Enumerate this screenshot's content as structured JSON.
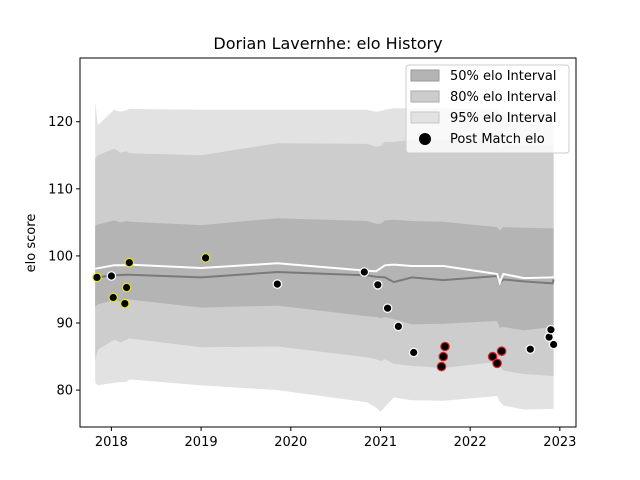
{
  "chart_data": {
    "type": "line",
    "title": "Dorian Lavernhe: elo History",
    "xlabel": "",
    "ylabel": "elo score",
    "xlim": [
      2017.65,
      2023.18
    ],
    "ylim": [
      74.5,
      129.5
    ],
    "x_ticks": [
      2018,
      2019,
      2020,
      2021,
      2022,
      2023
    ],
    "y_ticks": [
      80,
      90,
      100,
      110,
      120
    ],
    "grid": false,
    "legend_position": "top-right",
    "legend": [
      "50% elo Interval",
      "80% elo Interval",
      "95% elo Interval",
      "Post Match elo"
    ],
    "colors": {
      "band95": "#e2e2e2",
      "band80": "#cdcdcd",
      "band50": "#b4b4b4",
      "median": "#7a7a7a",
      "mean": "#ffffff",
      "point_fill": "#000000",
      "edge_default": "#ffffff",
      "edge_yellow": "#e6e61a",
      "edge_red": "#e02020"
    },
    "bands": {
      "x": [
        2017.82,
        2017.85,
        2018.03,
        2018.1,
        2018.17,
        2018.2,
        2019.0,
        2019.85,
        2020.85,
        2020.95,
        2021.0,
        2021.05,
        2021.15,
        2021.35,
        2021.7,
        2022.3,
        2022.33,
        2022.37,
        2022.6,
        2022.92,
        2022.93
      ],
      "hi95": [
        123.0,
        119.5,
        121.8,
        121.5,
        121.7,
        121.9,
        121.8,
        121.8,
        121.8,
        121.5,
        121.6,
        121.8,
        122.0,
        122.0,
        122.0,
        121.8,
        120.5,
        121.4,
        121.2,
        121.2,
        121.2
      ],
      "hi80": [
        114.5,
        115.0,
        116.0,
        115.4,
        115.6,
        115.3,
        115.0,
        116.8,
        116.7,
        116.3,
        116.4,
        117.0,
        117.0,
        117.3,
        117.3,
        117.1,
        115.7,
        116.5,
        116.6,
        116.5,
        116.5
      ],
      "hi50": [
        104.5,
        104.7,
        105.3,
        105.0,
        105.2,
        105.1,
        104.6,
        105.6,
        105.2,
        104.8,
        104.8,
        105.3,
        105.4,
        105.2,
        105.1,
        104.3,
        103.8,
        104.3,
        104.2,
        104.1,
        104.1
      ],
      "lo50": [
        92.4,
        92.8,
        93.4,
        93.2,
        93.6,
        93.5,
        92.3,
        92.6,
        91.0,
        90.9,
        90.7,
        90.9,
        90.6,
        89.8,
        89.9,
        90.3,
        89.3,
        89.4,
        88.9,
        89.4,
        89.4
      ],
      "lo80": [
        84.4,
        86.0,
        87.5,
        87.1,
        87.5,
        87.7,
        86.4,
        86.5,
        84.9,
        84.6,
        84.3,
        84.6,
        83.9,
        83.6,
        83.3,
        84.2,
        83.6,
        82.9,
        82.4,
        82.1,
        82.1
      ],
      "lo95": [
        81.1,
        80.7,
        81.1,
        81.2,
        81.2,
        81.6,
        80.7,
        80.0,
        78.2,
        77.4,
        76.8,
        77.5,
        78.9,
        78.5,
        78.4,
        79.1,
        78.3,
        77.7,
        77.1,
        77.2,
        77.2
      ]
    },
    "mean_line": {
      "x": [
        2017.82,
        2018.03,
        2018.17,
        2018.2,
        2019.0,
        2019.85,
        2020.85,
        2020.95,
        2021.05,
        2021.15,
        2021.35,
        2021.7,
        2022.3,
        2022.33,
        2022.37,
        2022.6,
        2022.92,
        2022.93
      ],
      "y": [
        98.1,
        98.6,
        98.6,
        98.7,
        98.2,
        98.9,
        97.8,
        97.7,
        98.6,
        98.7,
        98.5,
        98.5,
        97.3,
        96.0,
        97.3,
        96.7,
        96.8,
        96.9
      ]
    },
    "median_line": {
      "x": [
        2017.82,
        2018.03,
        2018.17,
        2018.2,
        2019.0,
        2019.85,
        2020.85,
        2020.95,
        2021.05,
        2021.15,
        2021.35,
        2021.7,
        2022.3,
        2022.33,
        2022.37,
        2022.6,
        2022.92,
        2022.93
      ],
      "y": [
        96.8,
        97.1,
        97.2,
        97.2,
        96.8,
        97.6,
        97.1,
        96.9,
        96.8,
        96.1,
        96.8,
        96.4,
        97.0,
        96.0,
        96.5,
        96.2,
        95.9,
        96.5
      ]
    },
    "points": [
      {
        "x": 2017.84,
        "y": 96.8,
        "edge": "yellow"
      },
      {
        "x": 2018.0,
        "y": 97.0,
        "edge": "white"
      },
      {
        "x": 2018.02,
        "y": 93.8,
        "edge": "yellow"
      },
      {
        "x": 2018.15,
        "y": 92.9,
        "edge": "yellow"
      },
      {
        "x": 2018.17,
        "y": 95.3,
        "edge": "yellow"
      },
      {
        "x": 2018.2,
        "y": 99.0,
        "edge": "yellow"
      },
      {
        "x": 2019.05,
        "y": 99.7,
        "edge": "yellow"
      },
      {
        "x": 2019.85,
        "y": 95.8,
        "edge": "white"
      },
      {
        "x": 2020.82,
        "y": 97.6,
        "edge": "white"
      },
      {
        "x": 2020.97,
        "y": 95.7,
        "edge": "white"
      },
      {
        "x": 2021.08,
        "y": 92.2,
        "edge": "white"
      },
      {
        "x": 2021.2,
        "y": 89.5,
        "edge": "white"
      },
      {
        "x": 2021.37,
        "y": 85.6,
        "edge": "white"
      },
      {
        "x": 2021.68,
        "y": 83.5,
        "edge": "red"
      },
      {
        "x": 2021.7,
        "y": 85.0,
        "edge": "red"
      },
      {
        "x": 2021.72,
        "y": 86.5,
        "edge": "red"
      },
      {
        "x": 2022.25,
        "y": 85.0,
        "edge": "red"
      },
      {
        "x": 2022.3,
        "y": 84.0,
        "edge": "red"
      },
      {
        "x": 2022.35,
        "y": 85.8,
        "edge": "red"
      },
      {
        "x": 2022.67,
        "y": 86.1,
        "edge": "white"
      },
      {
        "x": 2022.88,
        "y": 87.9,
        "edge": "white"
      },
      {
        "x": 2022.9,
        "y": 89.0,
        "edge": "white"
      },
      {
        "x": 2022.93,
        "y": 86.8,
        "edge": "white"
      }
    ]
  }
}
